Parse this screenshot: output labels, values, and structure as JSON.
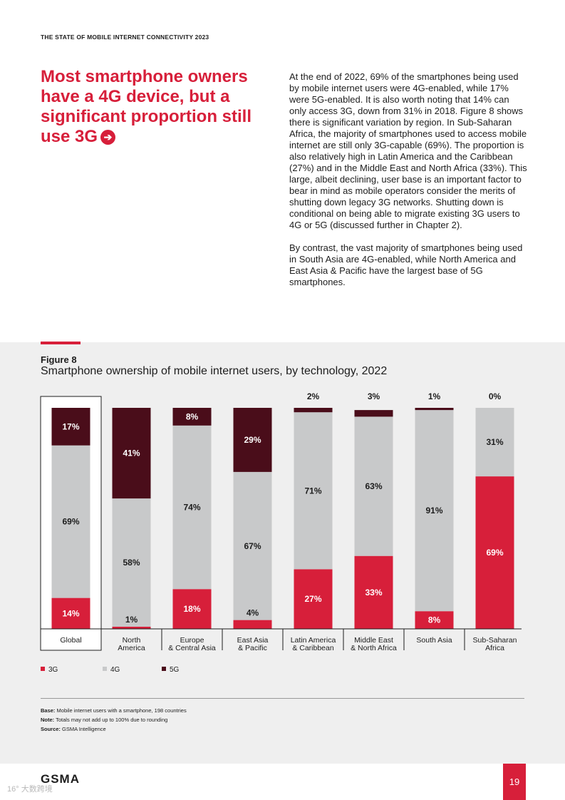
{
  "header": {
    "running_head": "THE STATE OF MOBILE INTERNET CONNECTIVITY 2023"
  },
  "headline": "Most smartphone owners have a 4G device, but a significant proportion still use 3G",
  "body_paragraphs": [
    "At the end of 2022, 69% of the smartphones being used by mobile internet users were 4G-enabled, while 17% were 5G-enabled. It is also worth noting that 14% can only access 3G, down from 31% in 2018. Figure 8 shows there is significant variation by region. In Sub-Saharan Africa, the majority of smartphones used to access mobile internet are still only 3G-capable (69%). The proportion is also relatively high in Latin America and the Caribbean (27%) and in the Middle East and North Africa (33%). This large, albeit declining, user base is an important factor to bear in mind as mobile operators consider the merits of shutting down legacy 3G networks. Shutting down is conditional on being able to migrate existing 3G users to 4G or 5G (discussed further in Chapter 2).",
    "By contrast, the vast majority of smartphones being used in South Asia are 4G-enabled, while North America and East Asia & Pacific have the largest base of 5G smartphones."
  ],
  "figure": {
    "label": "Figure 8",
    "title": "Smartphone ownership of mobile internet users, by technology, 2022"
  },
  "chart_data": {
    "type": "bar",
    "stacked": true,
    "title": "Smartphone ownership of mobile internet users, by technology, 2022",
    "categories": [
      [
        "Global"
      ],
      [
        "North",
        "America"
      ],
      [
        "Europe",
        "& Central Asia"
      ],
      [
        "East Asia",
        "& Pacific"
      ],
      [
        "Latin America",
        "& Caribbean"
      ],
      [
        "Middle East",
        "& North Africa"
      ],
      [
        "South Asia"
      ],
      [
        "Sub-Saharan",
        "Africa"
      ]
    ],
    "series": [
      {
        "name": "3G",
        "color": "#d71f3a",
        "values": [
          14,
          1,
          18,
          4,
          27,
          33,
          8,
          69
        ],
        "label_color": "#ffffff"
      },
      {
        "name": "4G",
        "color": "#c8c9ca",
        "values": [
          69,
          58,
          74,
          67,
          71,
          63,
          91,
          31
        ],
        "label_color": "#1d1d1d"
      },
      {
        "name": "5G",
        "color": "#4a0d1a",
        "values": [
          17,
          41,
          8,
          29,
          2,
          3,
          1,
          0
        ],
        "label_color": "#ffffff"
      }
    ],
    "data_labels": [
      [
        "14%",
        "69%",
        "17%"
      ],
      [
        "1%",
        "58%",
        "41%"
      ],
      [
        "18%",
        "74%",
        "8%"
      ],
      [
        "4%",
        "67%",
        "29%"
      ],
      [
        "27%",
        "71%",
        "2%"
      ],
      [
        "33%",
        "63%",
        "3%"
      ],
      [
        "8%",
        "91%",
        "1%"
      ],
      [
        "69%",
        "31%",
        "0%"
      ]
    ],
    "ylim": [
      0,
      100
    ],
    "highlighted_category": "Global",
    "legend": [
      "3G",
      "4G",
      "5G"
    ],
    "legend_position": "bottom-left"
  },
  "notes": {
    "base_label": "Base:",
    "base_text": "Mobile internet users with a smartphone, 198 countries",
    "note_label": "Note:",
    "note_text": "Totals may not add up to 100% due to rounding",
    "source_label": "Source:",
    "source_text": "GSMA Intelligence"
  },
  "footer": {
    "logo": "GSMA",
    "page_number": "19",
    "watermark": "16° 大数跨境"
  },
  "colors": {
    "accent": "#d71f3a",
    "panel_bg": "#efefef"
  }
}
